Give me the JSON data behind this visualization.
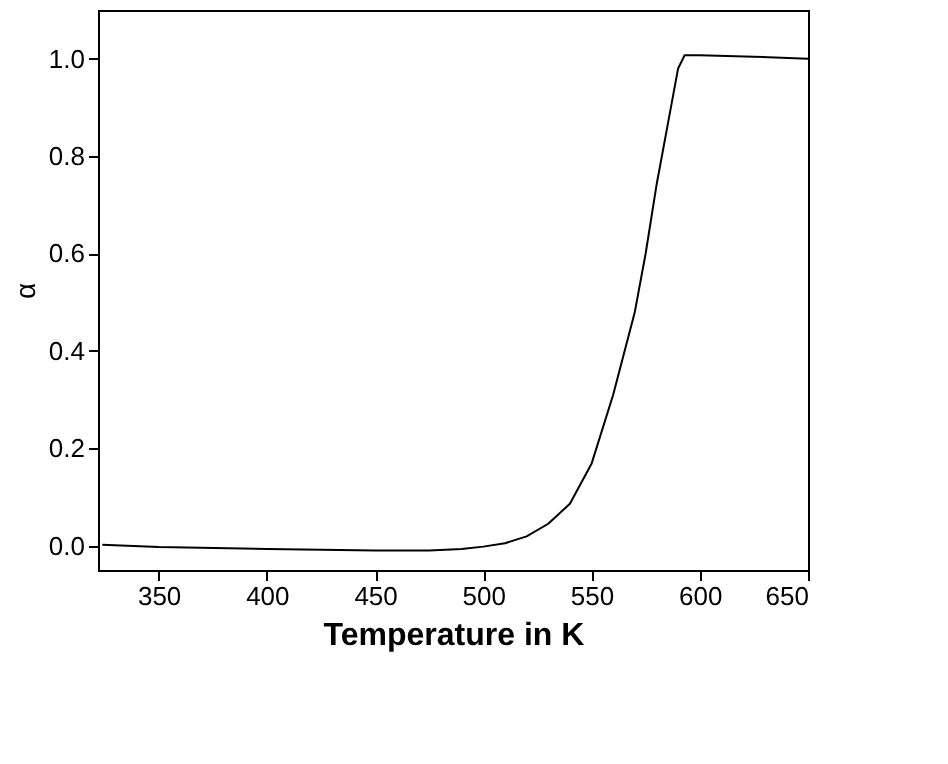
{
  "chart_data": {
    "type": "line",
    "xlabel": "Temperature in K",
    "ylabel": "α",
    "x": [
      324,
      350,
      400,
      450,
      475,
      490,
      500,
      510,
      520,
      530,
      540,
      550,
      560,
      570,
      575,
      580,
      585,
      590,
      593,
      600,
      625,
      650
    ],
    "series": [
      {
        "color": "#000000",
        "values": [
          0.002,
          -0.003,
          -0.007,
          -0.01,
          -0.01,
          -0.007,
          -0.002,
          0.005,
          0.019,
          0.045,
          0.086,
          0.168,
          0.31,
          0.48,
          0.6,
          0.74,
          0.86,
          0.98,
          1.007,
          1.007,
          1.004,
          1.0
        ]
      }
    ],
    "xlim": [
      322,
      650
    ],
    "ylim": [
      -0.05,
      1.1
    ],
    "xticks": [
      350,
      400,
      450,
      500,
      550,
      600,
      650
    ],
    "yticks": [
      {
        "value": 0,
        "label": "0.0"
      },
      0.2,
      0.4,
      0.6,
      0.8,
      {
        "value": 1,
        "label": "1.0"
      }
    ],
    "grid": false,
    "marker": "none",
    "line_style": "solid"
  }
}
